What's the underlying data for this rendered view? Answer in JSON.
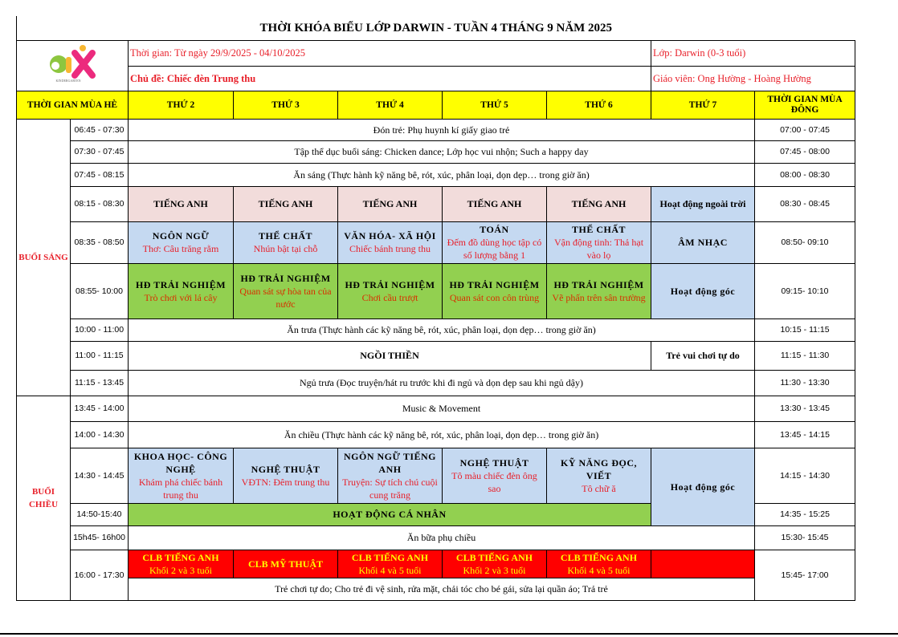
{
  "title": "THỜI KHÓA BIỂU LỚP DARWIN - TUẦN 4 THÁNG 9 NĂM 2025",
  "logo_text": "AIK",
  "info": {
    "time": "Thời gian: Từ ngày 29/9/2025 - 04/10/2025",
    "class": "Lớp: Darwin (0-3 tuổi)",
    "topic": "Chủ đề: Chiếc đèn Trung thu",
    "teacher": "Giáo viên: Ong Hường - Hoàng Hường"
  },
  "header": {
    "summer": "THỜI GIAN MÙA HÈ",
    "days": [
      "THỨ 2",
      "THỨ 3",
      "THỨ 4",
      "THỨ 5",
      "THỨ 6",
      "THỨ 7"
    ],
    "winter": "THỜI GIAN MÙA ĐÔNG"
  },
  "sessions": {
    "morning": "BUỔI SÁNG",
    "afternoon": "BUỔI CHIỀU"
  },
  "colors": {
    "header": "#ffff00",
    "english": "#f2dcdb",
    "lesson": "#c5d9f1",
    "experience": "#92d050",
    "club": "#ff0000",
    "accent_text": "#e8202a"
  },
  "rows": [
    {
      "summer": "06:45 - 07:30",
      "text": "Đón trẻ: Phụ huynh kí giấy giao trẻ",
      "winter": "07:00 -  07:45"
    },
    {
      "summer": "07:30 - 07:45",
      "text": "Tập thể dục buổi sáng: Chicken dance; Lớp học vui nhộn; Such a happy day",
      "winter": "07:45 - 08:00"
    },
    {
      "summer": "07:45 - 08:15",
      "text": "Ăn sáng (Thực hành kỹ năng bê, rót, xúc, phân loại, dọn dẹp… trong giờ ăn)",
      "winter": "08:00 - 08:30"
    },
    {
      "summer": "08:15 - 08:30",
      "cells": [
        "TIẾNG ANH",
        "TIẾNG ANH",
        "TIẾNG ANH",
        "TIẾNG ANH",
        "TIẾNG ANH",
        "Hoạt động ngoài trời"
      ],
      "winter": "08:30 - 08:45"
    },
    {
      "summer": "08:35 - 08:50",
      "cells": [
        {
          "s": "NGÔN NGỮ",
          "d": "Thơ: Câu trăng rằm"
        },
        {
          "s": "THỂ CHẤT",
          "d": "Nhún bật tại chỗ"
        },
        {
          "s": "VĂN HÓA- XÃ HỘI",
          "d": "Chiếc bánh trung thu"
        },
        {
          "s": "TOÁN",
          "d": "Đếm  đồ dùng học tập có số lượng bằng 1"
        },
        {
          "s": "THỂ CHẤT",
          "d": "Vận động tinh: Thả hạt vào lọ"
        },
        {
          "s": "ÂM NHẠC"
        }
      ],
      "winter": "08:50- 09:10"
    },
    {
      "summer": "08:55- 10:00",
      "cells": [
        {
          "s": "HĐ TRẢI NGHIỆM",
          "d": "Trò chơi với lá cây"
        },
        {
          "s": "HĐ TRẢI NGHIỆM",
          "d": "Quan sát sự hòa tan của nước"
        },
        {
          "s": "HĐ TRẢI NGHIỆM",
          "d": "Chơi cầu trượt"
        },
        {
          "s": "HĐ TRẢI NGHIỆM",
          "d": "Quan sát con côn trùng"
        },
        {
          "s": "HĐ TRẢI NGHIỆM",
          "d": "Vẽ phấn trên sân trường"
        },
        {
          "s": "Hoạt động góc"
        }
      ],
      "winter": "09:15- 10:10"
    },
    {
      "summer": "10:00 - 11:00",
      "text": "Ăn trưa (Thực hành các kỹ năng bê, rót, xúc, phân loại, dọn dẹp… trong giờ ăn)",
      "winter": "10:15 - 11:15"
    },
    {
      "summer": "11:00 - 11:15",
      "text": "NGỒI THIỀN",
      "sat": "Trẻ vui chơi tự do",
      "winter": "11:15 - 11:30"
    },
    {
      "summer": "11:15 - 13:45",
      "text": "Ngủ trưa (Đọc truyện/hát ru trước khi đi ngủ và dọn dẹp sau khi ngủ dậy)",
      "winter": "11:30 - 13:30"
    },
    {
      "summer": "13:45 - 14:00",
      "text": "Music & Movement",
      "winter": "13:30 - 13:45"
    },
    {
      "summer": "14:00 - 14:30",
      "text": "Ăn chiều (Thực hành các kỹ năng bê, rót, xúc, phân loại, dọn dẹp… trong giờ ăn)",
      "winter": "13:45 - 14:15"
    },
    {
      "summer": "14:30 - 14:45",
      "cells": [
        {
          "s": "KHOA HỌC- CÔNG NGHỆ",
          "d": "Khám phá chiếc bánh trung thu"
        },
        {
          "s": "NGHỆ THUẬT",
          "d": "VĐTN: Đêm trung thu"
        },
        {
          "s": "NGÔN NGỮ TIẾNG ANH",
          "d": "Truyện: Sự tích chú cuội cung trăng"
        },
        {
          "s": "NGHỆ THUẬT",
          "d": "Tô màu chiếc đèn  ông sao"
        },
        {
          "s": "KỸ NĂNG ĐỌC, VIẾT",
          "d": "Tô chữ ă"
        },
        {
          "s": "Hoạt động góc"
        }
      ],
      "winter": "14:15 - 14:30"
    },
    {
      "summer": "14:50-15:40",
      "text": "HOẠT ĐỘNG CÁ NHÂN",
      "winter": "14:35 - 15:25"
    },
    {
      "summer": "15h45- 16h00",
      "text": "Ăn bữa phụ chiều",
      "winter": "15:30- 15:45"
    },
    {
      "summer": "16:00 - 17:30",
      "cells": [
        {
          "s": "CLB TIẾNG ANH",
          "d": "Khối 2 và 3 tuổi"
        },
        {
          "s": "CLB MỸ THUẬT"
        },
        {
          "s": "CLB TIẾNG ANH",
          "d": "Khối 4 và 5 tuổi"
        },
        {
          "s": "CLB TIẾNG ANH",
          "d": "Khối 2 và 3 tuổi"
        },
        {
          "s": "CLB TIẾNG ANH",
          "d": "Khối 4 và 5 tuổi"
        }
      ],
      "text": "Trẻ chơi tự do; Cho trẻ đi vệ sinh, rửa mặt, chải tóc cho bé gái, sửa lại quần áo; Trả trẻ",
      "winter": "15:45- 17:00"
    }
  ]
}
